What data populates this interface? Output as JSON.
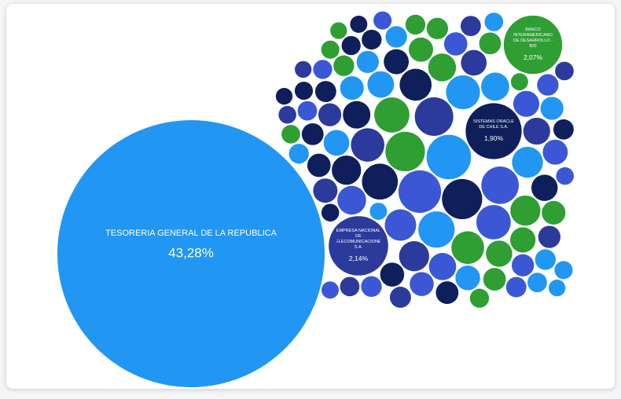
{
  "chart_data": {
    "type": "bubble",
    "categories": [
      "TESORERIA GENERAL DE LA REPUBLICA",
      "EMPRESA NACIONAL DE TELECOMUNICACIONES S.A.",
      "SISTEMAS ORACLE DE CHILE S.A.",
      "BANCO INTERAMERICANO DE DESARROLLO - BID",
      null,
      null,
      null,
      null,
      null,
      null,
      null,
      null,
      null,
      null,
      null,
      null,
      null,
      null,
      null,
      null,
      null,
      null,
      null,
      null,
      null,
      null,
      null,
      null,
      null,
      null,
      null,
      null,
      null,
      null,
      null,
      null,
      null,
      null,
      null,
      null,
      null,
      null,
      null,
      null,
      null,
      null,
      null,
      null,
      null,
      null,
      null,
      null,
      null,
      null,
      null,
      null,
      null,
      null,
      null,
      null,
      null,
      null,
      null,
      null,
      null,
      null,
      null,
      null,
      null,
      null,
      null,
      null,
      null,
      null,
      null,
      null,
      null,
      null,
      null,
      null,
      null,
      null,
      null,
      null,
      null,
      null,
      null,
      null,
      null,
      null,
      null,
      null,
      null,
      null
    ],
    "values": [
      43.28,
      2.14,
      1.9,
      2.07,
      1.2,
      1.1,
      0.98,
      0.95,
      0.9,
      0.85,
      0.8,
      0.78,
      0.75,
      0.72,
      0.7,
      0.68,
      0.65,
      0.62,
      0.6,
      0.58,
      0.55,
      0.55,
      0.52,
      0.5,
      0.48,
      0.47,
      0.46,
      0.45,
      0.44,
      0.43,
      0.42,
      0.42,
      0.41,
      0.4,
      0.4,
      0.39,
      0.38,
      0.38,
      0.37,
      0.36,
      0.36,
      0.35,
      0.35,
      0.34,
      0.34,
      0.33,
      0.33,
      0.32,
      0.32,
      0.31,
      0.31,
      0.3,
      0.3,
      0.3,
      0.29,
      0.29,
      0.28,
      0.28,
      0.28,
      0.27,
      0.27,
      0.26,
      0.26,
      0.26,
      0.25,
      0.25,
      0.25,
      0.24,
      0.24,
      0.24,
      0.23,
      0.23,
      0.23,
      0.22,
      0.22,
      0.22,
      0.21,
      0.21,
      0.21,
      0.2,
      0.2,
      0.2,
      0.2,
      0.19,
      0.19,
      0.19,
      0.18,
      0.18,
      0.18,
      0.18,
      0.17,
      0.17,
      0.17,
      0.17
    ],
    "value_labels": [
      "43,28%",
      "2,14%",
      "1,90%",
      "2,07%",
      null,
      null,
      null,
      null,
      null,
      null,
      null,
      null,
      null,
      null,
      null,
      null,
      null,
      null,
      null,
      null,
      null,
      null,
      null,
      null,
      null,
      null,
      null,
      null,
      null,
      null,
      null,
      null,
      null,
      null,
      null,
      null,
      null,
      null,
      null,
      null,
      null,
      null,
      null,
      null,
      null,
      null,
      null,
      null,
      null,
      null,
      null,
      null,
      null,
      null,
      null,
      null,
      null,
      null,
      null,
      null,
      null,
      null,
      null,
      null,
      null,
      null,
      null,
      null,
      null,
      null,
      null,
      null,
      null,
      null,
      null,
      null,
      null,
      null,
      null,
      null,
      null,
      null,
      null,
      null,
      null,
      null,
      null,
      null,
      null,
      null,
      null,
      null,
      null,
      null
    ],
    "colors": [
      "#2196f3",
      "#2c3a9c",
      "#0e1f5b",
      "#2f9e33",
      "#2196f3",
      "#3b57d6",
      "#0e1f5b",
      "#2f9e33",
      "#2c3a9c",
      "#3b57d6",
      "#2196f3",
      "#0e1f5b",
      "#2f9e33",
      "#3b57d6",
      "#2196f3",
      "#2c3a9c",
      "#2f9e33",
      "#0e1f5b",
      "#3b57d6",
      "#2196f3",
      "#2c3a9c",
      "#2f9e33",
      "#0e1f5b",
      "#3b57d6",
      "#2196f3",
      "#2f9e33",
      "#0e1f5b",
      "#3b57d6",
      "#2c3a9c",
      "#2196f3",
      "#2f9e33",
      "#0e1f5b",
      "#3b57d6",
      "#2196f3",
      "#2c3a9c",
      "#2f9e33",
      "#0e1f5b",
      "#3b57d6",
      "#2196f3",
      "#2f9e33",
      "#2c3a9c",
      "#0e1f5b",
      "#3b57d6",
      "#2196f3",
      "#2f9e33",
      "#0e1f5b",
      "#3b57d6",
      "#2c3a9c",
      "#2196f3",
      "#2f9e33",
      "#0e1f5b",
      "#3b57d6",
      "#2196f3",
      "#2c3a9c",
      "#2f9e33",
      "#0e1f5b",
      "#3b57d6",
      "#2196f3",
      "#2f9e33",
      "#2c3a9c",
      "#0e1f5b",
      "#3b57d6",
      "#2196f3",
      "#2f9e33",
      "#0e1f5b",
      "#3b57d6",
      "#2c3a9c",
      "#2196f3",
      "#2f9e33",
      "#0e1f5b",
      "#3b57d6",
      "#2196f3",
      "#2c3a9c",
      "#2f9e33",
      "#0e1f5b",
      "#3b57d6",
      "#2196f3",
      "#2f9e33",
      "#2c3a9c",
      "#0e1f5b",
      "#3b57d6",
      "#2196f3",
      "#2f9e33",
      "#0e1f5b",
      "#3b57d6",
      "#2c3a9c",
      "#2196f3",
      "#2f9e33",
      "#0e1f5b",
      "#3b57d6",
      "#2196f3",
      "#2c3a9c",
      "#2f9e33",
      "#0e1f5b"
    ]
  }
}
